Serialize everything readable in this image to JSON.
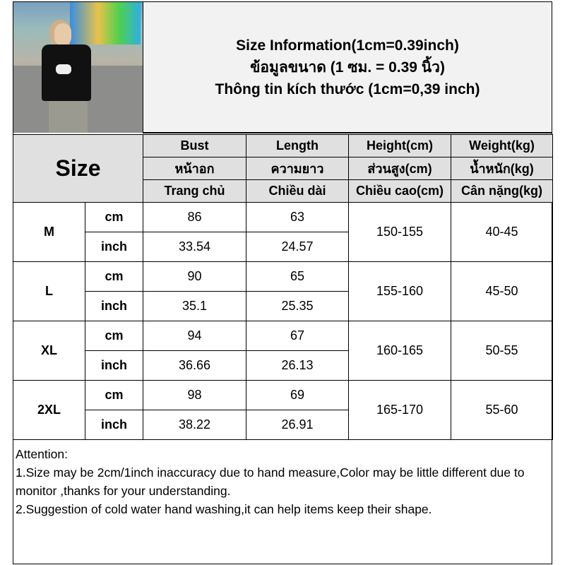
{
  "title": {
    "line1": "Size Information(1cm=0.39inch)",
    "line2": "ข้อมูลขนาด (1 ซม. = 0.39 นิ้ว)",
    "line3": "Thông tin kích thước (1cm=0,39 inch)"
  },
  "table": {
    "size_header": "Size",
    "columns": [
      {
        "en": "Bust",
        "th": "หน้าอก",
        "vi": "Trang chủ"
      },
      {
        "en": "Length",
        "th": "ความยาว",
        "vi": "Chiều dài"
      },
      {
        "en": "Height(cm)",
        "th": "ส่วนสูง(cm)",
        "vi": "Chiều cao(cm)"
      },
      {
        "en": "Weight(kg)",
        "th": "น้ำหนัก(kg)",
        "vi": "Cân nặng(kg)"
      }
    ],
    "unit_cm": "cm",
    "unit_inch": "inch",
    "rows": [
      {
        "size": "M",
        "bust_cm": "86",
        "length_cm": "63",
        "bust_inch": "33.54",
        "length_inch": "24.57",
        "height": "150-155",
        "weight": "40-45"
      },
      {
        "size": "L",
        "bust_cm": "90",
        "length_cm": "65",
        "bust_inch": "35.1",
        "length_inch": "25.35",
        "height": "155-160",
        "weight": "45-50"
      },
      {
        "size": "XL",
        "bust_cm": "94",
        "length_cm": "67",
        "bust_inch": "36.66",
        "length_inch": "26.13",
        "height": "160-165",
        "weight": "50-55"
      },
      {
        "size": "2XL",
        "bust_cm": "98",
        "length_cm": "69",
        "bust_inch": "38.22",
        "length_inch": "26.91",
        "height": "165-170",
        "weight": "55-60"
      }
    ]
  },
  "notes": {
    "heading": "Attention:",
    "items": [
      "1.Size may be 2cm/1inch inaccuracy due to hand measure,Color may be little different due to monitor ,thanks for your understanding.",
      "2.Suggestion of cold water hand washing,it can help items keep their shape."
    ]
  }
}
